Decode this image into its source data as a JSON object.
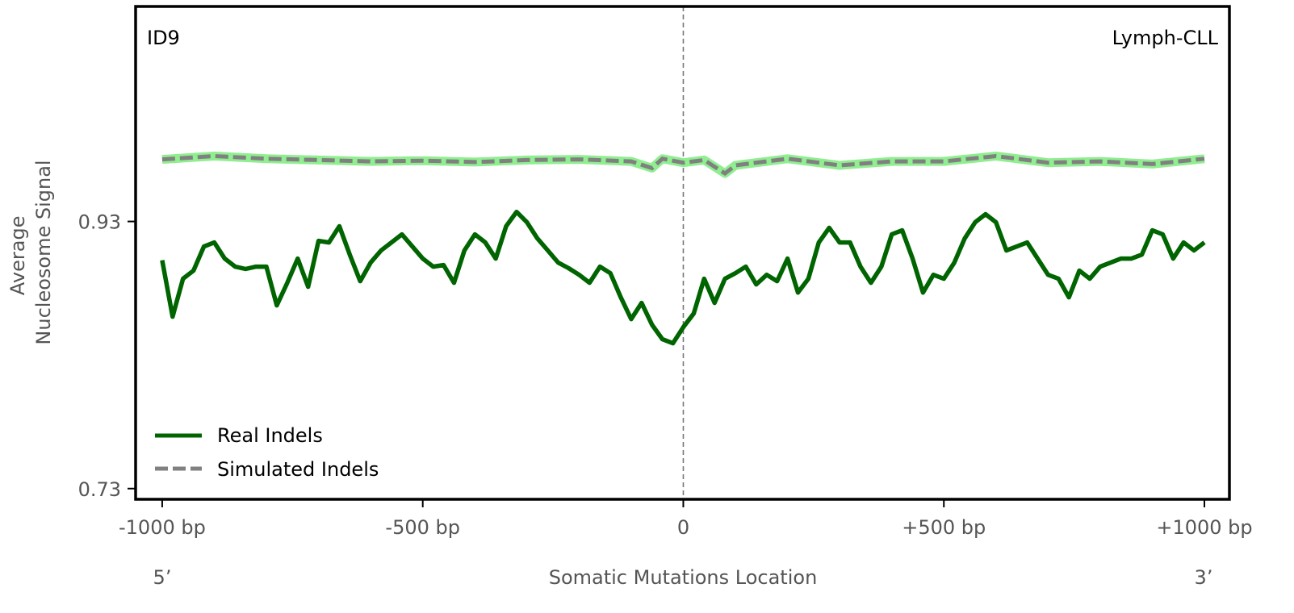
{
  "chart_data": {
    "type": "line",
    "title_left": "ID9",
    "title_right": "Lymph-CLL",
    "xlabel": "Somatic Mutations Location",
    "ylabel_lines": [
      "Average",
      "Nucleosome Signal"
    ],
    "strand_left": "5’",
    "strand_right": "3’",
    "xlim": [
      -1051,
      1048
    ],
    "ylim": [
      0.722,
      1.091
    ],
    "x_ticks": [
      {
        "value": -1000,
        "label": "-1000 bp"
      },
      {
        "value": -500,
        "label": "-500 bp"
      },
      {
        "value": 0,
        "label": "0"
      },
      {
        "value": 500,
        "label": "+500 bp"
      },
      {
        "value": 1000,
        "label": "+1000 bp"
      }
    ],
    "y_ticks": [
      {
        "value": 0.93,
        "label": "0.93"
      },
      {
        "value": 0.73,
        "label": "0.73"
      }
    ],
    "center_line": 0,
    "grid": false,
    "legend_position": "bottom-left",
    "series": [
      {
        "name": "Real Indels",
        "color": "#006400",
        "style": "solid",
        "x": [
          -1000,
          -980,
          -960,
          -940,
          -920,
          -900,
          -880,
          -860,
          -840,
          -820,
          -800,
          -780,
          -760,
          -740,
          -720,
          -700,
          -680,
          -660,
          -640,
          -620,
          -600,
          -580,
          -560,
          -540,
          -520,
          -500,
          -480,
          -460,
          -440,
          -420,
          -400,
          -380,
          -360,
          -340,
          -320,
          -300,
          -280,
          -260,
          -240,
          -220,
          -200,
          -180,
          -160,
          -140,
          -120,
          -100,
          -80,
          -60,
          -40,
          -20,
          0,
          20,
          40,
          60,
          80,
          100,
          120,
          140,
          160,
          180,
          200,
          220,
          240,
          260,
          280,
          300,
          320,
          340,
          360,
          380,
          400,
          420,
          440,
          460,
          480,
          500,
          520,
          540,
          560,
          580,
          600,
          620,
          640,
          660,
          680,
          700,
          720,
          740,
          760,
          780,
          800,
          820,
          840,
          860,
          880,
          900,
          920,
          940,
          960,
          980,
          1000
        ],
        "y": [
          0.901,
          0.8587,
          0.8871,
          0.8932,
          0.9113,
          0.9143,
          0.9022,
          0.8962,
          0.8944,
          0.8962,
          0.8962,
          0.8672,
          0.8841,
          0.9022,
          0.8811,
          0.9155,
          0.9143,
          0.9264,
          0.9052,
          0.8853,
          0.8992,
          0.9083,
          0.9143,
          0.9203,
          0.9113,
          0.9022,
          0.8962,
          0.8974,
          0.8841,
          0.9083,
          0.9203,
          0.9143,
          0.9022,
          0.9264,
          0.9372,
          0.9294,
          0.9173,
          0.9083,
          0.8992,
          0.895,
          0.8901,
          0.8841,
          0.8962,
          0.8913,
          0.8732,
          0.8569,
          0.869,
          0.8527,
          0.8418,
          0.8388,
          0.8509,
          0.8611,
          0.8871,
          0.869,
          0.8871,
          0.8913,
          0.8962,
          0.8829,
          0.8901,
          0.8853,
          0.9022,
          0.8768,
          0.8871,
          0.9143,
          0.9252,
          0.9143,
          0.9143,
          0.8962,
          0.8841,
          0.8962,
          0.9203,
          0.9234,
          0.9022,
          0.8768,
          0.8901,
          0.8871,
          0.8992,
          0.9173,
          0.9294,
          0.9354,
          0.9294,
          0.9083,
          0.9113,
          0.9143,
          0.9022,
          0.8901,
          0.8871,
          0.8732,
          0.8932,
          0.8871,
          0.8962,
          0.8992,
          0.9022,
          0.9022,
          0.9052,
          0.9234,
          0.9203,
          0.9022,
          0.9143,
          0.9083,
          0.9143
        ]
      },
      {
        "name": "Simulated Indels",
        "color": "#808080",
        "band_color": "#90ee90",
        "style": "dashed",
        "x": [
          -1000,
          -900,
          -800,
          -700,
          -600,
          -500,
          -400,
          -300,
          -200,
          -100,
          -60,
          -40,
          0,
          40,
          80,
          100,
          200,
          300,
          400,
          500,
          600,
          700,
          800,
          900,
          1000
        ],
        "y": [
          0.9765,
          0.979,
          0.977,
          0.976,
          0.975,
          0.9755,
          0.9745,
          0.976,
          0.9765,
          0.975,
          0.97,
          0.977,
          0.974,
          0.976,
          0.966,
          0.972,
          0.977,
          0.972,
          0.975,
          0.975,
          0.979,
          0.974,
          0.975,
          0.973,
          0.977
        ]
      }
    ]
  }
}
